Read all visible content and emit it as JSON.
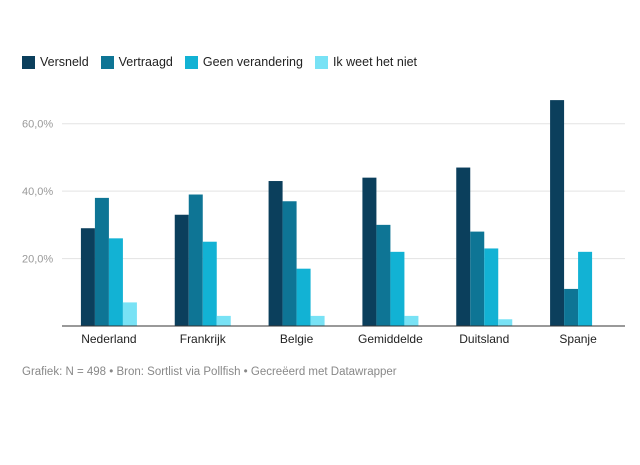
{
  "chart_data": {
    "type": "bar",
    "title": "",
    "xlabel": "",
    "ylabel": "",
    "categories": [
      "Nederland",
      "Frankrijk",
      "Belgie",
      "Gemiddelde",
      "Duitsland",
      "Spanje"
    ],
    "series": [
      {
        "name": "Versneld",
        "color": "#0b3f5c",
        "values": [
          29,
          33,
          43,
          44,
          47,
          67
        ]
      },
      {
        "name": "Vertraagd",
        "color": "#0e7595",
        "values": [
          38,
          39,
          37,
          30,
          28,
          11
        ]
      },
      {
        "name": "Geen verandering",
        "color": "#12b2d4",
        "values": [
          26,
          25,
          17,
          22,
          23,
          22
        ]
      },
      {
        "name": "Ik weet het niet",
        "color": "#78e2f5",
        "values": [
          7,
          3,
          3,
          3,
          2,
          0
        ]
      }
    ],
    "yticks": [
      {
        "value": 20,
        "label": "20,0%"
      },
      {
        "value": 40,
        "label": "40,0%"
      },
      {
        "value": 60,
        "label": "60,0%"
      }
    ],
    "ylim": [
      0,
      70
    ],
    "grid": true,
    "legend_position": "top-left"
  },
  "footer": {
    "text": "Grafiek: N = 498 • Bron: Sortlist via Pollfish • Gecreëerd met Datawrapper"
  }
}
